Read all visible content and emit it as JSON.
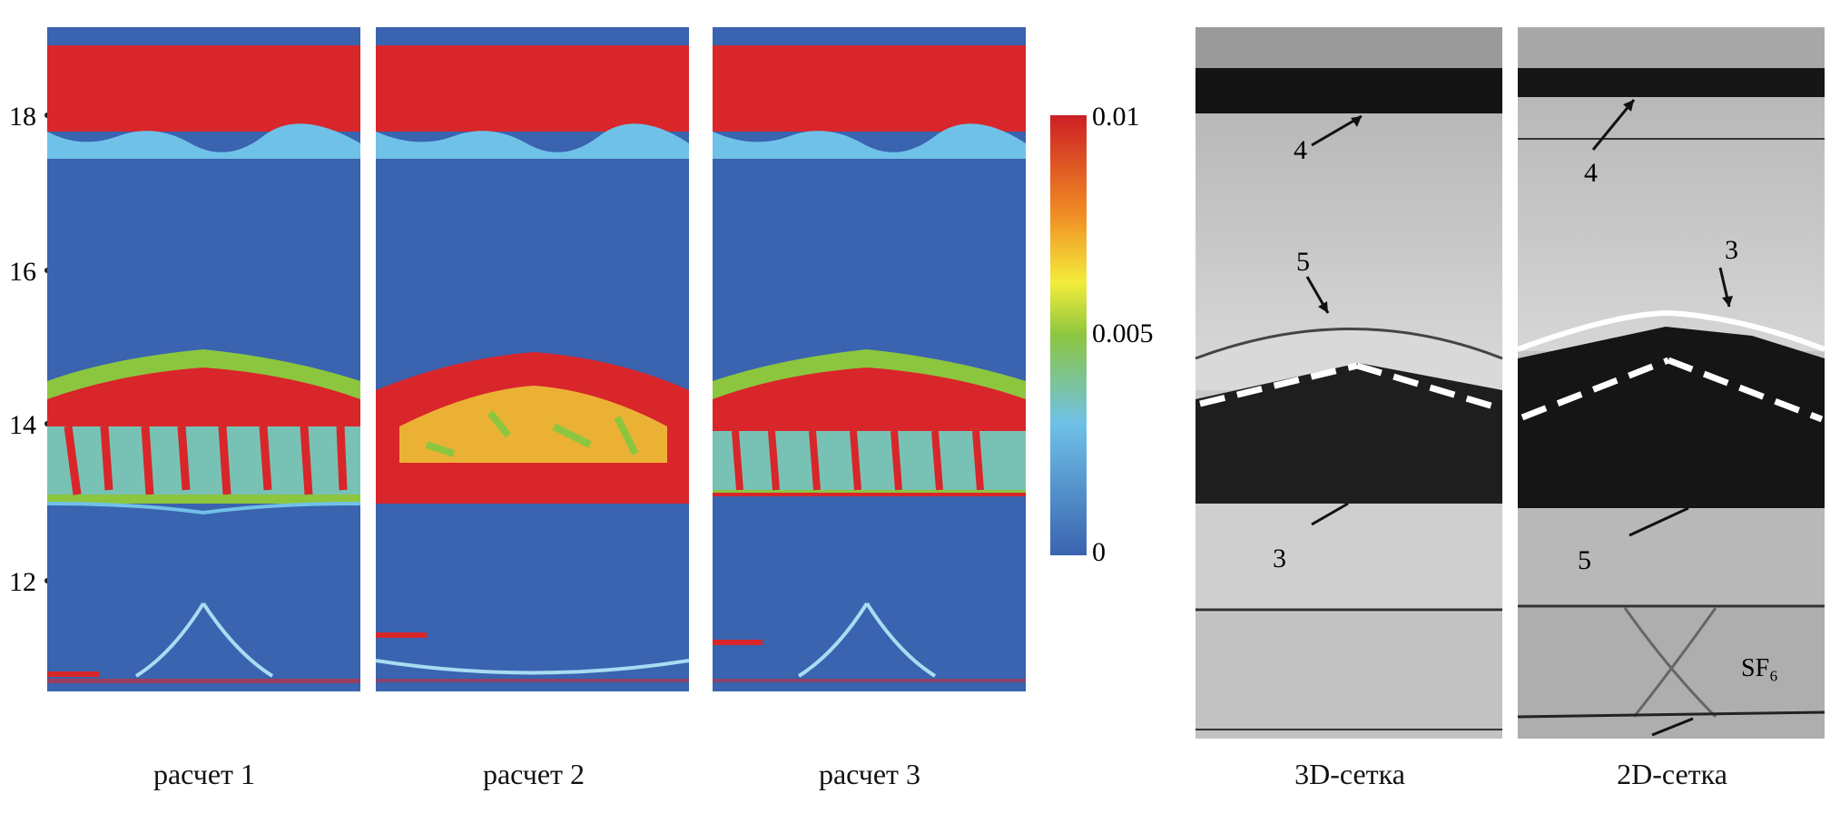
{
  "y_axis": {
    "ticks": [
      "12",
      "14",
      "16",
      "18"
    ]
  },
  "colorbar": {
    "labels": [
      "0.01",
      "0.005",
      "0"
    ]
  },
  "colors": {
    "field_blue": "#3a63b0",
    "field_red": "#d8262a",
    "field_yellow": "#f3ec3b",
    "field_green": "#8cc63f",
    "field_cyan": "#6fc1e8",
    "photo_light": "#cfcfcf",
    "photo_dark": "#141414"
  },
  "simulation_panels": [
    {
      "caption": "расчет 1"
    },
    {
      "caption": "расчет 2"
    },
    {
      "caption": "расчет 3"
    }
  ],
  "photo_panels": [
    {
      "caption": "3D-сетка",
      "labels": [
        "4",
        "5",
        "3"
      ]
    },
    {
      "caption": "2D-сетка",
      "labels": [
        "4",
        "3",
        "5",
        "SF₆"
      ]
    }
  ]
}
